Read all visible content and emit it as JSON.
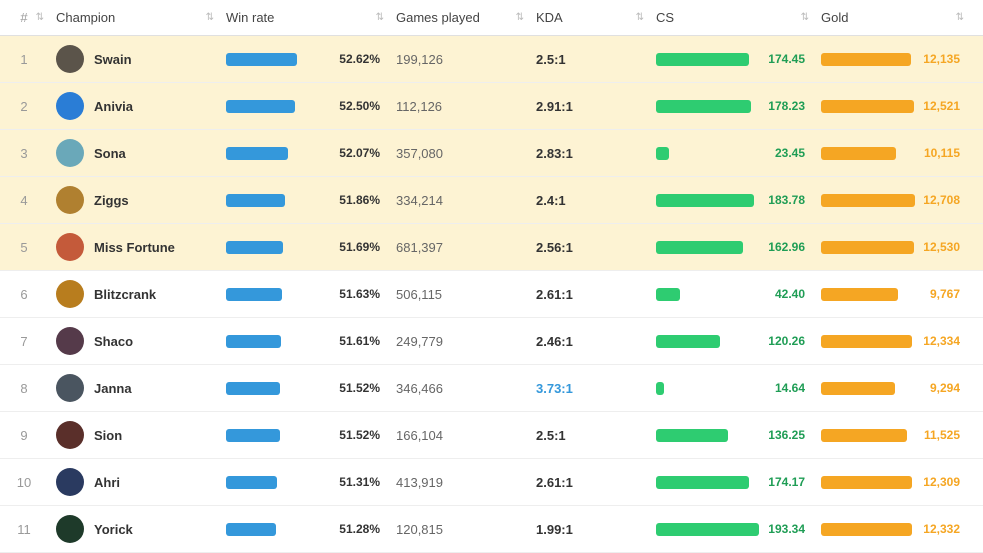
{
  "columns": {
    "rank": "#",
    "champion": "Champion",
    "winrate": "Win rate",
    "games": "Games played",
    "kda": "KDA",
    "cs": "CS",
    "gold": "Gold"
  },
  "colors": {
    "winrate_bar": "#3498db",
    "cs_bar": "#2ecc71",
    "gold_bar": "#f5a623",
    "highlight_bg": "#fdf3d3",
    "border": "#e0e0e0"
  },
  "scales": {
    "winrate_min": 48,
    "winrate_max": 55,
    "cs_max": 200,
    "gold_max": 13000
  },
  "rows": [
    {
      "rank": 1,
      "champion": "Swain",
      "avatar": "#5b544a",
      "winrate": "52.62%",
      "winrate_pct": 52.62,
      "games": "199,126",
      "kda": "2.5:1",
      "kda_hi": false,
      "cs": "174.45",
      "cs_val": 174.45,
      "gold": "12,135",
      "gold_val": 12135,
      "highlight": true
    },
    {
      "rank": 2,
      "champion": "Anivia",
      "avatar": "#2a7dd6",
      "winrate": "52.50%",
      "winrate_pct": 52.5,
      "games": "112,126",
      "kda": "2.91:1",
      "kda_hi": false,
      "cs": "178.23",
      "cs_val": 178.23,
      "gold": "12,521",
      "gold_val": 12521,
      "highlight": true
    },
    {
      "rank": 3,
      "champion": "Sona",
      "avatar": "#6aa8b9",
      "winrate": "52.07%",
      "winrate_pct": 52.07,
      "games": "357,080",
      "kda": "2.83:1",
      "kda_hi": false,
      "cs": "23.45",
      "cs_val": 23.45,
      "gold": "10,115",
      "gold_val": 10115,
      "highlight": true
    },
    {
      "rank": 4,
      "champion": "Ziggs",
      "avatar": "#b08030",
      "winrate": "51.86%",
      "winrate_pct": 51.86,
      "games": "334,214",
      "kda": "2.4:1",
      "kda_hi": false,
      "cs": "183.78",
      "cs_val": 183.78,
      "gold": "12,708",
      "gold_val": 12708,
      "highlight": true
    },
    {
      "rank": 5,
      "champion": "Miss Fortune",
      "avatar": "#c45a3a",
      "winrate": "51.69%",
      "winrate_pct": 51.69,
      "games": "681,397",
      "kda": "2.56:1",
      "kda_hi": false,
      "cs": "162.96",
      "cs_val": 162.96,
      "gold": "12,530",
      "gold_val": 12530,
      "highlight": true
    },
    {
      "rank": 6,
      "champion": "Blitzcrank",
      "avatar": "#b87d1e",
      "winrate": "51.63%",
      "winrate_pct": 51.63,
      "games": "506,115",
      "kda": "2.61:1",
      "kda_hi": false,
      "cs": "42.40",
      "cs_val": 42.4,
      "gold": "9,767",
      "gold_val": 9767,
      "highlight": false
    },
    {
      "rank": 7,
      "champion": "Shaco",
      "avatar": "#553a4a",
      "winrate": "51.61%",
      "winrate_pct": 51.61,
      "games": "249,779",
      "kda": "2.46:1",
      "kda_hi": false,
      "cs": "120.26",
      "cs_val": 120.26,
      "gold": "12,334",
      "gold_val": 12334,
      "highlight": false
    },
    {
      "rank": 8,
      "champion": "Janna",
      "avatar": "#4a5560",
      "winrate": "51.52%",
      "winrate_pct": 51.52,
      "games": "346,466",
      "kda": "3.73:1",
      "kda_hi": true,
      "cs": "14.64",
      "cs_val": 14.64,
      "gold": "9,294",
      "gold_val": 9294,
      "highlight": false
    },
    {
      "rank": 9,
      "champion": "Sion",
      "avatar": "#5a2f2a",
      "winrate": "51.52%",
      "winrate_pct": 51.52,
      "games": "166,104",
      "kda": "2.5:1",
      "kda_hi": false,
      "cs": "136.25",
      "cs_val": 136.25,
      "gold": "11,525",
      "gold_val": 11525,
      "highlight": false
    },
    {
      "rank": 10,
      "champion": "Ahri",
      "avatar": "#2a3a60",
      "winrate": "51.31%",
      "winrate_pct": 51.31,
      "games": "413,919",
      "kda": "2.61:1",
      "kda_hi": false,
      "cs": "174.17",
      "cs_val": 174.17,
      "gold": "12,309",
      "gold_val": 12309,
      "highlight": false
    },
    {
      "rank": 11,
      "champion": "Yorick",
      "avatar": "#1e3a2a",
      "winrate": "51.28%",
      "winrate_pct": 51.28,
      "games": "120,815",
      "kda": "1.99:1",
      "kda_hi": false,
      "cs": "193.34",
      "cs_val": 193.34,
      "gold": "12,332",
      "gold_val": 12332,
      "highlight": false
    }
  ]
}
